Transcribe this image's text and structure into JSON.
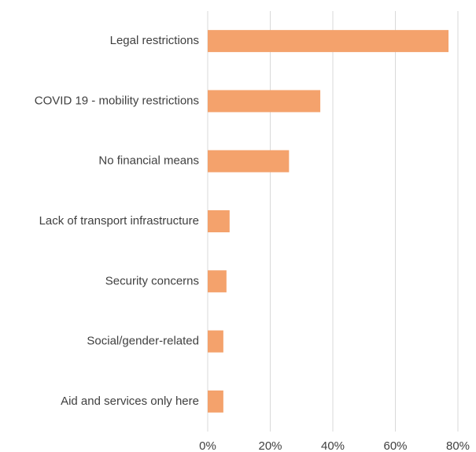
{
  "chart_data": {
    "type": "bar",
    "orientation": "horizontal",
    "categories": [
      "Legal restrictions",
      "COVID 19 - mobility restrictions",
      "No financial means",
      "Lack of transport infrastructure",
      "Security concerns",
      "Social/gender-related",
      "Aid and services only here"
    ],
    "values": [
      77,
      36,
      26,
      7,
      6,
      5,
      5
    ],
    "color": "#f4a26c",
    "xlim": [
      0,
      80
    ],
    "xticks": [
      {
        "value": 0,
        "label": "0%"
      },
      {
        "value": 20,
        "label": "20%"
      },
      {
        "value": 40,
        "label": "40%"
      },
      {
        "value": 60,
        "label": "60%"
      },
      {
        "value": 80,
        "label": "80%"
      }
    ],
    "grid": true
  }
}
